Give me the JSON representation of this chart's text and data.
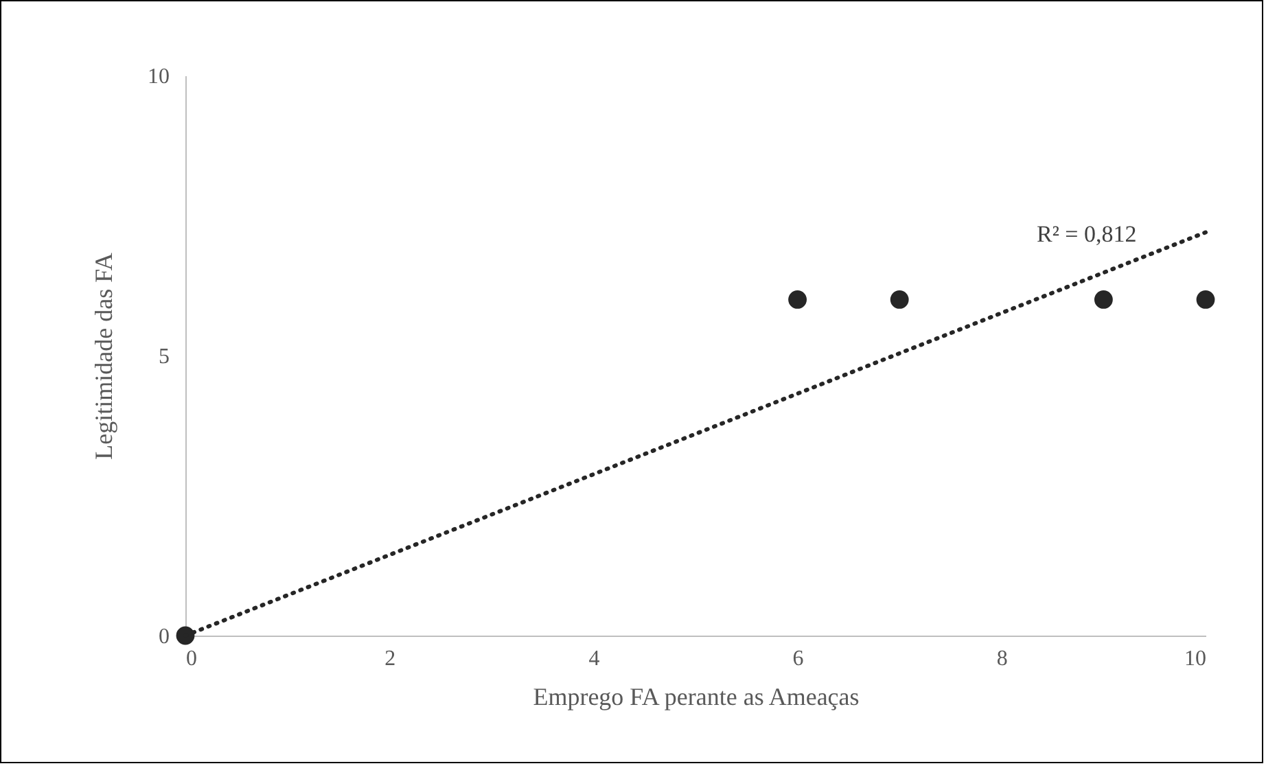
{
  "chart_data": {
    "type": "scatter",
    "xlabel": "Emprego FA perante as Ameaças",
    "ylabel": "Legitimidade das FA",
    "xlim": [
      0,
      10
    ],
    "xticks": [
      0,
      2,
      4,
      6,
      8,
      10
    ],
    "ylim": [
      0,
      10
    ],
    "yticks": [
      0,
      5,
      10
    ],
    "grid": false,
    "marker": "circle",
    "annotations": [
      "R² = 0,812"
    ],
    "series": [
      {
        "color": "#262626",
        "x": [
          0,
          6,
          7,
          9,
          10
        ],
        "values": [
          0,
          6,
          6,
          6,
          6
        ]
      },
      {
        "type": "line",
        "color": "#262626",
        "line_style": "dotted",
        "marker": "none",
        "x": [
          0,
          10
        ],
        "values": [
          0,
          7.2
        ]
      }
    ]
  }
}
